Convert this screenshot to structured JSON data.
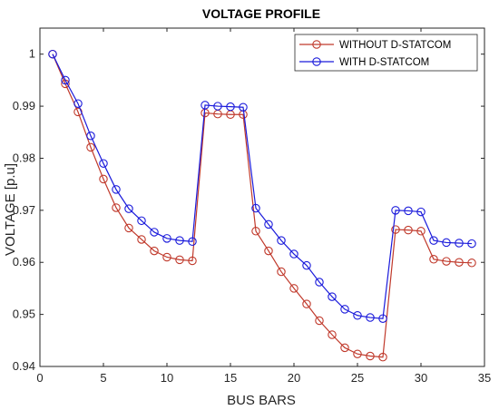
{
  "chart_data": {
    "type": "line",
    "title": "VOLTAGE PROFILE",
    "xlabel": "BUS BARS",
    "ylabel": "VOLTAGE [p.u]",
    "xlim": [
      0,
      35
    ],
    "ylim": [
      0.94,
      1.005
    ],
    "xticks": [
      0,
      5,
      10,
      15,
      20,
      25,
      30,
      35
    ],
    "yticks": [
      0.94,
      0.95,
      0.96,
      0.97,
      0.98,
      0.99,
      1.0
    ],
    "ytick_labels": [
      "0.94",
      "0.95",
      "0.96",
      "0.97",
      "0.98",
      "0.99",
      "1"
    ],
    "grid": false,
    "legend_position": "top-right",
    "x": [
      1,
      2,
      3,
      4,
      5,
      6,
      7,
      8,
      9,
      10,
      11,
      12,
      13,
      14,
      15,
      16,
      17,
      18,
      19,
      20,
      21,
      22,
      23,
      24,
      25,
      26,
      27,
      28,
      29,
      30,
      31,
      32,
      33,
      34
    ],
    "series": [
      {
        "name": "WITHOUT D-STATCOM",
        "color": "#c0392b",
        "values": [
          1.0,
          0.9943,
          0.9889,
          0.9821,
          0.976,
          0.9705,
          0.9666,
          0.9644,
          0.9622,
          0.961,
          0.9605,
          0.9603,
          0.9887,
          0.9885,
          0.9884,
          0.9884,
          0.966,
          0.9622,
          0.9582,
          0.955,
          0.952,
          0.9488,
          0.9461,
          0.9436,
          0.9424,
          0.942,
          0.9418,
          0.9663,
          0.9662,
          0.966,
          0.9606,
          0.9602,
          0.96,
          0.9599
        ]
      },
      {
        "name": "WITH D-STATCOM",
        "color": "#1a1adb",
        "values": [
          1.0,
          0.995,
          0.9905,
          0.9843,
          0.979,
          0.974,
          0.9703,
          0.968,
          0.9658,
          0.9646,
          0.9642,
          0.964,
          0.9902,
          0.99,
          0.9899,
          0.9898,
          0.9704,
          0.9673,
          0.9642,
          0.9616,
          0.9594,
          0.9562,
          0.9534,
          0.951,
          0.9498,
          0.9494,
          0.9492,
          0.97,
          0.9699,
          0.9697,
          0.9642,
          0.9638,
          0.9637,
          0.9636
        ]
      }
    ]
  }
}
